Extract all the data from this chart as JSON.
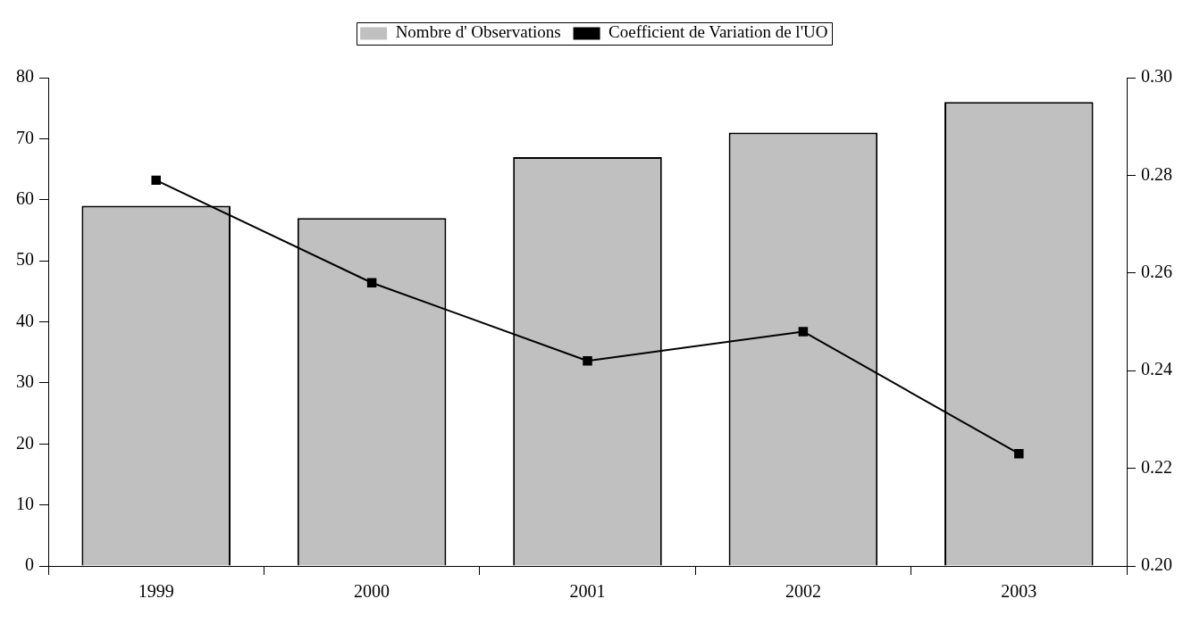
{
  "chart_data": {
    "type": "bar",
    "categories": [
      "1999",
      "2000",
      "2001",
      "2002",
      "2003"
    ],
    "series": [
      {
        "name": "Nombre d' Observations",
        "color": "#c0c0c0",
        "values": [
          59,
          57,
          67,
          71,
          76
        ]
      },
      {
        "name": "Coefficient de Variation de l'UO",
        "type": "line",
        "color": "#000000",
        "axis": "y2",
        "marker": "square",
        "values": [
          0.279,
          0.258,
          0.242,
          0.248,
          0.223
        ]
      }
    ],
    "ylim": [
      0,
      80
    ],
    "yticks": [
      0,
      10,
      20,
      30,
      40,
      50,
      60,
      70,
      80
    ],
    "y2lim": [
      0.2,
      0.3
    ],
    "y2ticks": [
      {
        "value": 0.2,
        "label": "0.20"
      },
      0.22,
      0.24,
      0.26,
      0.28,
      {
        "value": 0.3,
        "label": "0.30"
      }
    ],
    "legend": "top",
    "grid": false
  }
}
